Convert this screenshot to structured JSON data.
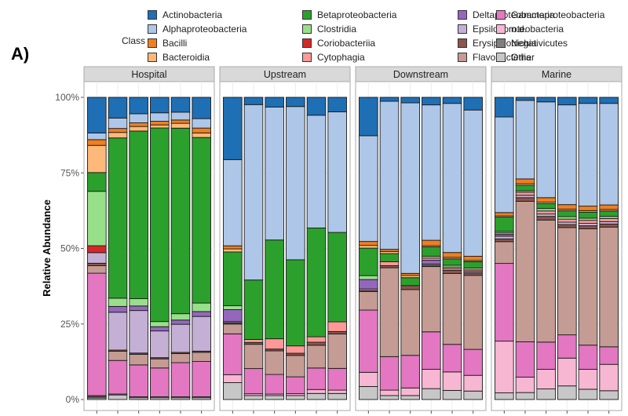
{
  "figure_label": "A)",
  "chart_data": {
    "type": "bar",
    "stacked": true,
    "title": "",
    "xlabel": "",
    "ylabel": "Relative Abundance",
    "ylim": [
      0,
      100
    ],
    "yticks": [
      "0%",
      "25%",
      "50%",
      "75%",
      "100%"
    ],
    "ytick_values": [
      0,
      25,
      50,
      75,
      100
    ],
    "grid": true,
    "legend": {
      "title": "Class",
      "placement": "top",
      "columns": 4
    },
    "classes": [
      {
        "name": "Actinobacteria",
        "color": "#1f6fb4"
      },
      {
        "name": "Alphaproteobacteria",
        "color": "#aec7e8"
      },
      {
        "name": "Bacilli",
        "color": "#f07f1e"
      },
      {
        "name": "Bacteroidia",
        "color": "#fdb97a"
      },
      {
        "name": "Betaproteobacteria",
        "color": "#2ca02c"
      },
      {
        "name": "Clostridia",
        "color": "#98df8a"
      },
      {
        "name": "Coriobacteriia",
        "color": "#d62728"
      },
      {
        "name": "Cytophagia",
        "color": "#ff9896"
      },
      {
        "name": "Deltaproteobacteria",
        "color": "#9467bd"
      },
      {
        "name": "Epsilonproteobacteria",
        "color": "#c5b0d5"
      },
      {
        "name": "Erysipelotrichia",
        "color": "#8c564b"
      },
      {
        "name": "Flavobacteriia",
        "color": "#c49c94"
      },
      {
        "name": "Gammaproteobacteria",
        "color": "#e377c2"
      },
      {
        "name": "n.d.",
        "color": "#f7b6d2"
      },
      {
        "name": "Negativicutes",
        "color": "#7f7f7f"
      },
      {
        "name": "Other",
        "color": "#c7c7c7"
      }
    ],
    "stack_order_bottom_to_top": [
      "Other",
      "Negativicutes",
      "n.d.",
      "Gammaproteobacteria",
      "Flavobacteriia",
      "Erysipelotrichia",
      "Epsilonproteobacteria",
      "Deltaproteobacteria",
      "Cytophagia",
      "Coriobacteriia",
      "Clostridia",
      "Betaproteobacteria",
      "Bacteroidia",
      "Bacilli",
      "Alphaproteobacteria",
      "Actinobacteria"
    ],
    "facets": [
      {
        "name": "Hospital",
        "samples": [
          {
            "Other": 0.5,
            "Negativicutes": 0.5,
            "n.d.": 0.3,
            "Gammaproteobacteria": 40.5,
            "Flavobacteriia": 2.5,
            "Erysipelotrichia": 0.8,
            "Epsilonproteobacteria": 3.5,
            "Deltaproteobacteria": 0.0,
            "Cytophagia": 0.0,
            "Coriobacteriia": 2.3,
            "Clostridia": 18.0,
            "Betaproteobacteria": 6.2,
            "Bacteroidia": 9.0,
            "Bacilli": 1.9,
            "Alphaproteobacteria": 2.2,
            "Actinobacteria": 11.8
          },
          {
            "Other": 1.5,
            "Negativicutes": 0.0,
            "n.d.": 0.3,
            "Gammaproteobacteria": 11.0,
            "Flavobacteriia": 3.0,
            "Erysipelotrichia": 0.4,
            "Epsilonproteobacteria": 12.4,
            "Deltaproteobacteria": 1.9,
            "Cytophagia": 0.0,
            "Coriobacteriia": 0.0,
            "Clostridia": 2.7,
            "Betaproteobacteria": 52.5,
            "Bacteroidia": 1.8,
            "Bacilli": 1.3,
            "Alphaproteobacteria": 3.4,
            "Actinobacteria": 6.8
          },
          {
            "Other": 0.6,
            "Negativicutes": 0.0,
            "n.d.": 0.3,
            "Gammaproteobacteria": 10.5,
            "Flavobacteriia": 3.5,
            "Erysipelotrichia": 0.4,
            "Epsilonproteobacteria": 14.0,
            "Deltaproteobacteria": 1.5,
            "Cytophagia": 0.0,
            "Coriobacteriia": 0.0,
            "Clostridia": 2.4,
            "Betaproteobacteria": 55.2,
            "Bacteroidia": 1.5,
            "Bacilli": 1.2,
            "Alphaproteobacteria": 3.0,
            "Actinobacteria": 5.4
          },
          {
            "Other": 0.6,
            "Negativicutes": 0.0,
            "n.d.": 0.3,
            "Gammaproteobacteria": 9.5,
            "Flavobacteriia": 3.0,
            "Erysipelotrichia": 0.4,
            "Epsilonproteobacteria": 8.8,
            "Deltaproteobacteria": 1.4,
            "Cytophagia": 0.0,
            "Coriobacteriia": 0.0,
            "Clostridia": 1.7,
            "Betaproteobacteria": 63.8,
            "Bacteroidia": 1.0,
            "Bacilli": 1.2,
            "Alphaproteobacteria": 2.8,
            "Actinobacteria": 5.1
          },
          {
            "Other": 0.6,
            "Negativicutes": 0.0,
            "n.d.": 0.3,
            "Gammaproteobacteria": 11.3,
            "Flavobacteriia": 3.0,
            "Erysipelotrichia": 0.4,
            "Epsilonproteobacteria": 9.3,
            "Deltaproteobacteria": 1.4,
            "Cytophagia": 0.0,
            "Coriobacteriia": 0.0,
            "Clostridia": 2.1,
            "Betaproteobacteria": 61.4,
            "Bacteroidia": 1.6,
            "Bacilli": 1.1,
            "Alphaproteobacteria": 2.6,
            "Actinobacteria": 4.9
          },
          {
            "Other": 0.6,
            "Negativicutes": 0.0,
            "n.d.": 0.3,
            "Gammaproteobacteria": 11.6,
            "Flavobacteriia": 3.0,
            "Erysipelotrichia": 0.4,
            "Epsilonproteobacteria": 11.4,
            "Deltaproteobacteria": 1.6,
            "Cytophagia": 0.0,
            "Coriobacteriia": 0.0,
            "Clostridia": 2.8,
            "Betaproteobacteria": 54.4,
            "Bacteroidia": 1.5,
            "Bacilli": 1.6,
            "Alphaproteobacteria": 3.1,
            "Actinobacteria": 7.0
          }
        ]
      },
      {
        "name": "Upstream",
        "samples": [
          {
            "Other": 5.5,
            "Negativicutes": 0.0,
            "n.d.": 2.6,
            "Gammaproteobacteria": 13.3,
            "Flavobacteriia": 3.2,
            "Erysipelotrichia": 0.4,
            "Epsilonproteobacteria": 0.4,
            "Deltaproteobacteria": 3.9,
            "Cytophagia": 0.0,
            "Coriobacteriia": 0.0,
            "Clostridia": 1.3,
            "Betaproteobacteria": 17.5,
            "Bacteroidia": 1.0,
            "Bacilli": 1.0,
            "Alphaproteobacteria": 28.1,
            "Actinobacteria": 20.3
          },
          {
            "Other": 1.3,
            "Negativicutes": 0.0,
            "n.d.": 0.6,
            "Gammaproteobacteria": 8.3,
            "Flavobacteriia": 8.0,
            "Erysipelotrichia": 0.6,
            "Epsilonproteobacteria": 0.0,
            "Deltaproteobacteria": 0.0,
            "Cytophagia": 1.0,
            "Coriobacteriia": 0.0,
            "Clostridia": 0.0,
            "Betaproteobacteria": 19.6,
            "Bacteroidia": 0.0,
            "Bacilli": 0.0,
            "Alphaproteobacteria": 57.8,
            "Actinobacteria": 2.4
          },
          {
            "Other": 1.3,
            "Negativicutes": 0.0,
            "n.d.": 0.5,
            "Gammaproteobacteria": 6.5,
            "Flavobacteriia": 7.8,
            "Erysipelotrichia": 0.6,
            "Epsilonproteobacteria": 0.0,
            "Deltaproteobacteria": 0.0,
            "Cytophagia": 3.4,
            "Coriobacteriia": 0.0,
            "Clostridia": 0.0,
            "Betaproteobacteria": 32.7,
            "Bacteroidia": 0.0,
            "Bacilli": 0.0,
            "Alphaproteobacteria": 44.0,
            "Actinobacteria": 3.2
          },
          {
            "Other": 1.3,
            "Negativicutes": 0.0,
            "n.d.": 0.6,
            "Gammaproteobacteria": 5.5,
            "Flavobacteriia": 7.0,
            "Erysipelotrichia": 0.7,
            "Epsilonproteobacteria": 0.0,
            "Deltaproteobacteria": 0.0,
            "Cytophagia": 2.4,
            "Coriobacteriia": 0.0,
            "Clostridia": 0.0,
            "Betaproteobacteria": 28.1,
            "Bacteroidia": 0.0,
            "Bacilli": 0.0,
            "Alphaproteobacteria": 50.0,
            "Actinobacteria": 3.0
          },
          {
            "Other": 2.0,
            "Negativicutes": 0.0,
            "n.d.": 1.3,
            "Gammaproteobacteria": 7.1,
            "Flavobacteriia": 7.5,
            "Erysipelotrichia": 1.0,
            "Epsilonproteobacteria": 0.0,
            "Deltaproteobacteria": 0.0,
            "Cytophagia": 1.8,
            "Coriobacteriia": 0.0,
            "Clostridia": 0.0,
            "Betaproteobacteria": 35.9,
            "Bacteroidia": 0.0,
            "Bacilli": 0.0,
            "Alphaproteobacteria": 37.2,
            "Actinobacteria": 5.9
          },
          {
            "Other": 2.0,
            "Negativicutes": 0.0,
            "n.d.": 1.1,
            "Gammaproteobacteria": 7.2,
            "Flavobacteriia": 11.4,
            "Erysipelotrichia": 0.8,
            "Epsilonproteobacteria": 0.0,
            "Deltaproteobacteria": 0.0,
            "Cytophagia": 3.2,
            "Coriobacteriia": 0.0,
            "Clostridia": 0.0,
            "Betaproteobacteria": 29.6,
            "Bacteroidia": 0.0,
            "Bacilli": 0.0,
            "Alphaproteobacteria": 39.9,
            "Actinobacteria": 4.8
          }
        ]
      },
      {
        "name": "Downstream",
        "samples": [
          {
            "Other": 4.3,
            "Negativicutes": 0.0,
            "n.d.": 4.7,
            "Gammaproteobacteria": 20.6,
            "Flavobacteriia": 6.1,
            "Erysipelotrichia": 0.4,
            "Epsilonproteobacteria": 0.5,
            "Deltaproteobacteria": 3.1,
            "Cytophagia": 0.0,
            "Coriobacteriia": 0.0,
            "Clostridia": 1.3,
            "Betaproteobacteria": 9.1,
            "Bacteroidia": 0.9,
            "Bacilli": 1.3,
            "Alphaproteobacteria": 35.0,
            "Actinobacteria": 12.7
          },
          {
            "Other": 1.3,
            "Negativicutes": 0.0,
            "n.d.": 1.8,
            "Gammaproteobacteria": 11.1,
            "Flavobacteriia": 29.4,
            "Erysipelotrichia": 0.7,
            "Epsilonproteobacteria": 0.0,
            "Deltaproteobacteria": 0.0,
            "Cytophagia": 1.3,
            "Coriobacteriia": 0.0,
            "Clostridia": 0.0,
            "Betaproteobacteria": 2.7,
            "Bacteroidia": 0.7,
            "Bacilli": 0.7,
            "Alphaproteobacteria": 49.0,
            "Actinobacteria": 1.3
          },
          {
            "Other": 1.3,
            "Negativicutes": 0.0,
            "n.d.": 2.5,
            "Gammaproteobacteria": 10.7,
            "Flavobacteriia": 21.6,
            "Erysipelotrichia": 1.3,
            "Epsilonproteobacteria": 0.0,
            "Deltaproteobacteria": 0.0,
            "Cytophagia": 0.0,
            "Coriobacteriia": 0.0,
            "Clostridia": 0.0,
            "Betaproteobacteria": 2.6,
            "Bacteroidia": 0.7,
            "Bacilli": 0.7,
            "Alphaproteobacteria": 56.0,
            "Actinobacteria": 1.8
          },
          {
            "Other": 3.6,
            "Negativicutes": 0.0,
            "n.d.": 6.4,
            "Gammaproteobacteria": 12.4,
            "Flavobacteriia": 21.6,
            "Erysipelotrichia": 0.4,
            "Epsilonproteobacteria": 0.4,
            "Deltaproteobacteria": 1.3,
            "Cytophagia": 0.7,
            "Coriobacteriia": 0.0,
            "Clostridia": 0.6,
            "Betaproteobacteria": 3.1,
            "Bacteroidia": 0.4,
            "Bacilli": 1.8,
            "Alphaproteobacteria": 44.8,
            "Actinobacteria": 2.5
          },
          {
            "Other": 3.0,
            "Negativicutes": 0.0,
            "n.d.": 6.1,
            "Gammaproteobacteria": 9.1,
            "Flavobacteriia": 23.4,
            "Erysipelotrichia": 1.0,
            "Epsilonproteobacteria": 0.5,
            "Deltaproteobacteria": 0.0,
            "Cytophagia": 0.6,
            "Coriobacteriia": 0.0,
            "Clostridia": 0.6,
            "Betaproteobacteria": 2.1,
            "Bacteroidia": 0.5,
            "Bacilli": 1.6,
            "Alphaproteobacteria": 49.2,
            "Actinobacteria": 2.0
          },
          {
            "Other": 2.8,
            "Negativicutes": 0.0,
            "n.d.": 5.2,
            "Gammaproteobacteria": 8.6,
            "Flavobacteriia": 24.5,
            "Erysipelotrichia": 0.8,
            "Epsilonproteobacteria": 0.5,
            "Deltaproteobacteria": 0.0,
            "Cytophagia": 0.5,
            "Coriobacteriia": 0.0,
            "Clostridia": 0.6,
            "Betaproteobacteria": 2.1,
            "Bacteroidia": 0.4,
            "Bacilli": 1.4,
            "Alphaproteobacteria": 48.4,
            "Actinobacteria": 4.2
          }
        ]
      },
      {
        "name": "Marine",
        "samples": [
          {
            "Other": 2.2,
            "Negativicutes": 0.0,
            "n.d.": 17.1,
            "Gammaproteobacteria": 25.7,
            "Flavobacteriia": 7.2,
            "Erysipelotrichia": 0.9,
            "Epsilonproteobacteria": 0.9,
            "Deltaproteobacteria": 0.6,
            "Cytophagia": 0.5,
            "Coriobacteriia": 0.0,
            "Clostridia": 0.5,
            "Betaproteobacteria": 4.7,
            "Bacteroidia": 0.4,
            "Bacilli": 1.1,
            "Alphaproteobacteria": 31.6,
            "Actinobacteria": 6.5
          },
          {
            "Other": 2.3,
            "Negativicutes": 0.0,
            "n.d.": 5.1,
            "Gammaproteobacteria": 11.7,
            "Flavobacteriia": 46.5,
            "Erysipelotrichia": 1.2,
            "Epsilonproteobacteria": 0.8,
            "Deltaproteobacteria": 0.0,
            "Cytophagia": 1.0,
            "Coriobacteriia": 0.0,
            "Clostridia": 0.5,
            "Betaproteobacteria": 1.8,
            "Bacteroidia": 0.5,
            "Bacilli": 1.6,
            "Alphaproteobacteria": 26.0,
            "Actinobacteria": 1.0
          },
          {
            "Other": 3.5,
            "Negativicutes": 0.0,
            "n.d.": 6.5,
            "Gammaproteobacteria": 9.0,
            "Flavobacteriia": 40.4,
            "Erysipelotrichia": 1.2,
            "Epsilonproteobacteria": 0.8,
            "Deltaproteobacteria": 0.0,
            "Cytophagia": 1.0,
            "Coriobacteriia": 0.0,
            "Clostridia": 0.8,
            "Betaproteobacteria": 1.6,
            "Bacteroidia": 0.5,
            "Bacilli": 1.5,
            "Alphaproteobacteria": 31.7,
            "Actinobacteria": 1.5
          },
          {
            "Other": 4.5,
            "Negativicutes": 0.0,
            "n.d.": 9.2,
            "Gammaproteobacteria": 7.7,
            "Flavobacteriia": 35.5,
            "Erysipelotrichia": 1.0,
            "Epsilonproteobacteria": 0.8,
            "Deltaproteobacteria": 0.0,
            "Cytophagia": 1.0,
            "Coriobacteriia": 0.0,
            "Clostridia": 0.8,
            "Betaproteobacteria": 2.0,
            "Bacteroidia": 0.5,
            "Bacilli": 1.5,
            "Alphaproteobacteria": 33.0,
            "Actinobacteria": 2.5
          },
          {
            "Other": 3.4,
            "Negativicutes": 0.0,
            "n.d.": 6.6,
            "Gammaproteobacteria": 8.0,
            "Flavobacteriia": 38.5,
            "Erysipelotrichia": 1.0,
            "Epsilonproteobacteria": 0.8,
            "Deltaproteobacteria": 0.0,
            "Cytophagia": 1.0,
            "Coriobacteriia": 0.0,
            "Clostridia": 0.7,
            "Betaproteobacteria": 2.0,
            "Bacteroidia": 0.5,
            "Bacilli": 1.5,
            "Alphaproteobacteria": 34.0,
            "Actinobacteria": 2.0
          },
          {
            "Other": 2.9,
            "Negativicutes": 0.0,
            "n.d.": 8.7,
            "Gammaproteobacteria": 5.8,
            "Flavobacteriia": 39.5,
            "Erysipelotrichia": 1.0,
            "Epsilonproteobacteria": 0.8,
            "Deltaproteobacteria": 0.0,
            "Cytophagia": 1.0,
            "Coriobacteriia": 0.0,
            "Clostridia": 0.7,
            "Betaproteobacteria": 1.8,
            "Bacteroidia": 0.5,
            "Bacilli": 1.5,
            "Alphaproteobacteria": 33.5,
            "Actinobacteria": 2.0
          }
        ]
      }
    ]
  }
}
